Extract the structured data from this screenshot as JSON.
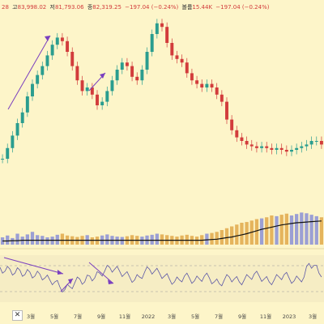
{
  "header": {
    "items": [
      {
        "label": "",
        "value": "28"
      },
      {
        "label": "고",
        "value": "83,998.02"
      },
      {
        "label": "저",
        "value": "81,793.06"
      },
      {
        "label": "종",
        "value": "82,319.25"
      },
      {
        "label": "",
        "value": "−197.04 (−0.24%)"
      },
      {
        "label": "볼륨",
        "value": "15.44K"
      },
      {
        "label": "",
        "value": "−197.04 (−0.24%)"
      }
    ]
  },
  "toolbar": {
    "close_icon": "close-icon",
    "close_label": "✕"
  },
  "colors": {
    "background": "#fdf5c9",
    "candle_up": "#2a9d8f",
    "candle_down": "#d23c3c",
    "volume_up": "#8a8fd6",
    "volume_down": "#e0a84a",
    "ma": "#111111",
    "annotation": "#7a3fbf",
    "rsi_line": "#5b57a6",
    "rsi_band": "#f0e6c0"
  },
  "chart_data": [
    {
      "type": "line",
      "series": [
        {
          "values": [
            0.2,
            0.26,
            0.33,
            0.4,
            0.46,
            0.55,
            0.62,
            0.67,
            0.72,
            0.78,
            0.84,
            0.88,
            0.86,
            0.8,
            0.72,
            0.64,
            0.58,
            0.6,
            0.56,
            0.5,
            0.52,
            0.58,
            0.64,
            0.7,
            0.74,
            0.72,
            0.66,
            0.64,
            0.7,
            0.8,
            0.9,
            0.96,
            0.94,
            0.85,
            0.78,
            0.76,
            0.74,
            0.68,
            0.64,
            0.62,
            0.6,
            0.62,
            0.6,
            0.56,
            0.52,
            0.42,
            0.36,
            0.32,
            0.3,
            0.28,
            0.27,
            0.26,
            0.27,
            0.26,
            0.25,
            0.26,
            0.25,
            0.24,
            0.25,
            0.26,
            0.27,
            0.28,
            0.3,
            0.3,
            0.28
          ]
        }
      ],
      "x_ticks": [
        "3월",
        "5월",
        "7월",
        "9월",
        "11월",
        "2022",
        "3월",
        "5월",
        "7월",
        "9월",
        "11월",
        "2023",
        "3월"
      ]
    },
    {
      "type": "bar",
      "series": [
        {
          "values": [
            0.2,
            0.25,
            0.18,
            0.3,
            0.22,
            0.28,
            0.35,
            0.26,
            0.24,
            0.2,
            0.22,
            0.27,
            0.3,
            0.25,
            0.23,
            0.21,
            0.24,
            0.26,
            0.2,
            0.22,
            0.25,
            0.28,
            0.24,
            0.22,
            0.21,
            0.23,
            0.26,
            0.24,
            0.22,
            0.25,
            0.27,
            0.3,
            0.28,
            0.26,
            0.24,
            0.22,
            0.25,
            0.27,
            0.24,
            0.22,
            0.26,
            0.3,
            0.32,
            0.35,
            0.4,
            0.45,
            0.5,
            0.55,
            0.6,
            0.62,
            0.66,
            0.7,
            0.72,
            0.75,
            0.8,
            0.78,
            0.82,
            0.85,
            0.8,
            0.84,
            0.88,
            0.86,
            0.82,
            0.78,
            0.75
          ]
        },
        {
          "values": [
            0.1,
            0.1,
            0.11,
            0.11,
            0.12,
            0.12,
            0.12,
            0.12,
            0.12,
            0.12,
            0.12,
            0.12,
            0.12,
            0.12,
            0.12,
            0.12,
            0.12,
            0.12,
            0.12,
            0.12,
            0.12,
            0.12,
            0.12,
            0.12,
            0.12,
            0.12,
            0.12,
            0.12,
            0.12,
            0.12,
            0.12,
            0.12,
            0.12,
            0.12,
            0.12,
            0.12,
            0.12,
            0.12,
            0.12,
            0.12,
            0.12,
            0.13,
            0.14,
            0.15,
            0.17,
            0.19,
            0.21,
            0.24,
            0.27,
            0.3,
            0.34,
            0.38,
            0.42,
            0.45,
            0.48,
            0.51,
            0.54,
            0.56,
            0.58,
            0.6,
            0.61,
            0.62,
            0.63,
            0.64,
            0.65
          ]
        }
      ]
    },
    {
      "type": "line",
      "series": [
        {
          "values": [
            0.7,
            0.62,
            0.66,
            0.58,
            0.64,
            0.55,
            0.6,
            0.52,
            0.56,
            0.48,
            0.44,
            0.4,
            0.3,
            0.24,
            0.3,
            0.38,
            0.46,
            0.4,
            0.52,
            0.48,
            0.58,
            0.62,
            0.7,
            0.66,
            0.62,
            0.56,
            0.5,
            0.44,
            0.5,
            0.6,
            0.66,
            0.62,
            0.58,
            0.52,
            0.46,
            0.4,
            0.44,
            0.52,
            0.48,
            0.42,
            0.46,
            0.52,
            0.48,
            0.4,
            0.36,
            0.44,
            0.5,
            0.46,
            0.4,
            0.44,
            0.5,
            0.56,
            0.52,
            0.46,
            0.4,
            0.44,
            0.5,
            0.55,
            0.48,
            0.42,
            0.46,
            0.5,
            0.78,
            0.74,
            0.58
          ]
        }
      ],
      "bands": [
        70,
        30
      ]
    }
  ]
}
